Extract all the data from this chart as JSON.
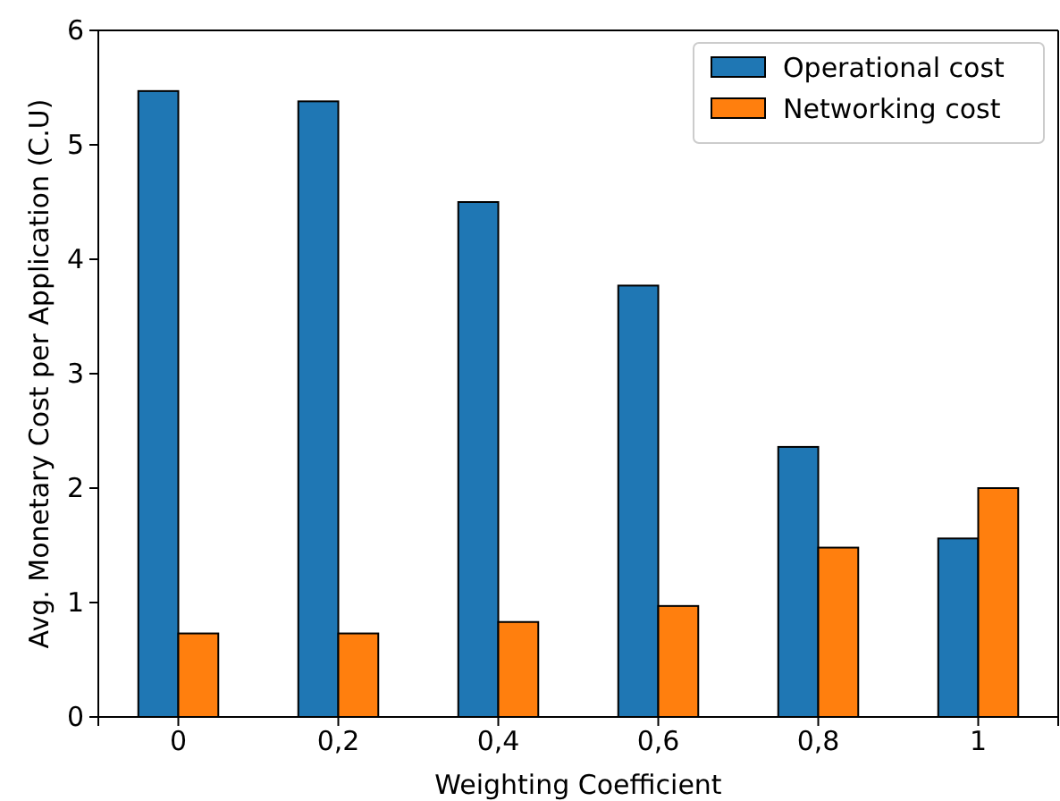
{
  "chart_data": {
    "type": "bar",
    "xlabel": "Weighting Coefficient",
    "ylabel": "Avg. Monetary Cost per Application (C.U)",
    "categories": [
      "0",
      "0,2",
      "0,4",
      "0,6",
      "0,8",
      "1"
    ],
    "series": [
      {
        "name": "Operational cost",
        "color": "#1f77b4",
        "values": [
          5.47,
          5.38,
          4.5,
          3.77,
          2.36,
          1.56
        ]
      },
      {
        "name": "Networking cost",
        "color": "#ff7f0e",
        "values": [
          0.73,
          0.73,
          0.83,
          0.97,
          1.48,
          2.0
        ]
      }
    ],
    "ylim": [
      0,
      6
    ],
    "yticks": [
      0,
      1,
      2,
      3,
      4,
      5,
      6
    ],
    "legend": "top right"
  }
}
